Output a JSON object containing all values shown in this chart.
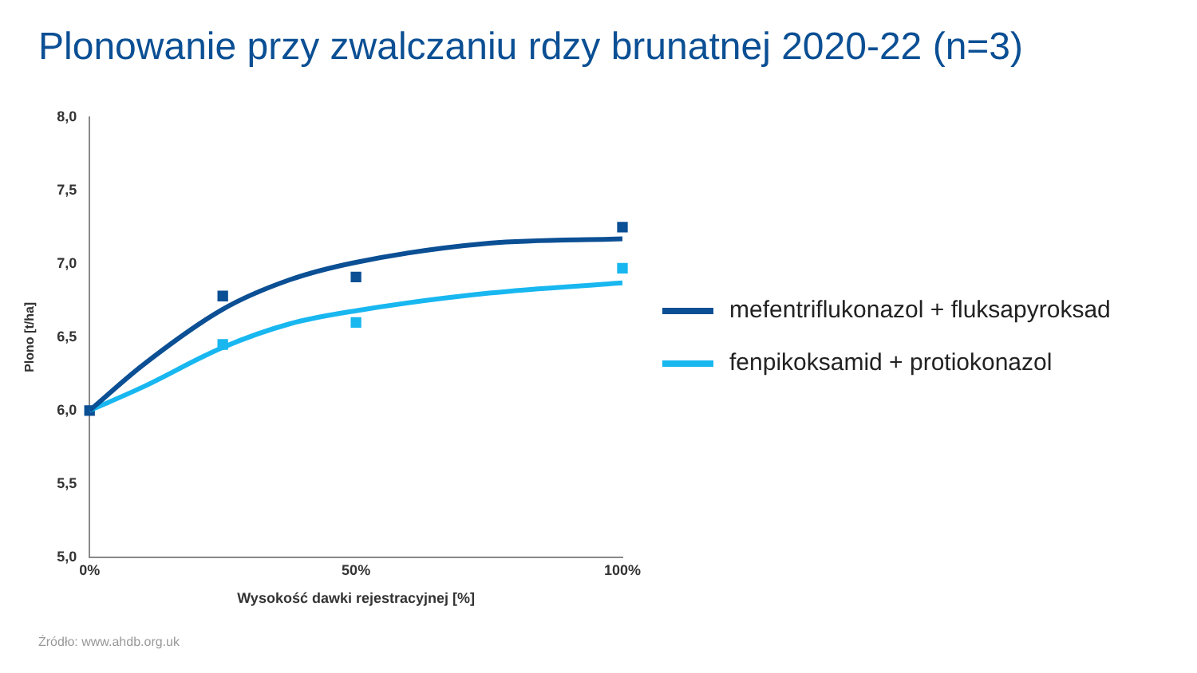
{
  "chart_data": {
    "type": "scatter",
    "title": "Plonowanie przy zwalczaniu rdzy brunatnej 2020-22 (n=3)",
    "xlabel": "Wysokość dawki rejestracyjnej [%]",
    "ylabel": "Plono [t/ha]",
    "annotations": [
      "Źródło:  www.ahdb.org.uk"
    ],
    "xlim": [
      0,
      100
    ],
    "xticks": [
      {
        "value": 0,
        "label": "0%"
      },
      {
        "value": 50,
        "label": "50%"
      },
      {
        "value": 100,
        "label": "100%"
      }
    ],
    "ylim": [
      5,
      8
    ],
    "yticks": [
      {
        "value": 5,
        "label": "5,0"
      },
      {
        "value": 5.5,
        "label": "5,5"
      },
      {
        "value": 6,
        "label": "6,0"
      },
      {
        "value": 6.5,
        "label": "6,5"
      },
      {
        "value": 7,
        "label": "7,0"
      },
      {
        "value": 7.5,
        "label": "7,5"
      },
      {
        "value": 8,
        "label": "8,0"
      }
    ],
    "grid": false,
    "legend": "right",
    "marker": "square",
    "series": [
      {
        "type": "line",
        "marker": "none",
        "name": "mefentriflukonazol + fluksapyroksad",
        "color": "#0b4f94",
        "x": [
          0,
          10,
          25,
          37.5,
          50,
          75,
          100
        ],
        "values": [
          6.0,
          6.31,
          6.69,
          6.89,
          7.01,
          7.14,
          7.17
        ]
      },
      {
        "type": "line",
        "marker": "none",
        "name": "fenpikoksamid + protiokonazol",
        "color": "#18b7f0",
        "x": [
          0,
          10,
          25,
          37.5,
          50,
          75,
          100
        ],
        "values": [
          6.0,
          6.16,
          6.43,
          6.59,
          6.68,
          6.8,
          6.87
        ]
      },
      {
        "color": "#0b4f94",
        "x": [
          0,
          25,
          50,
          100
        ],
        "values": [
          6.0,
          6.78,
          6.91,
          7.25
        ]
      },
      {
        "color": "#18b7f0",
        "x": [
          25,
          50,
          100
        ],
        "values": [
          6.45,
          6.6,
          6.97
        ]
      }
    ]
  }
}
